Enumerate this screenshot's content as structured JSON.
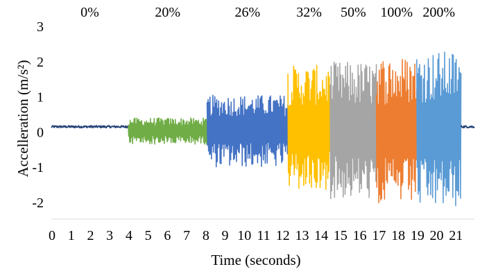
{
  "chart_data": {
    "type": "line",
    "xlabel": "Time (seconds)",
    "ylabel": "Accelleration (m/s²)",
    "xlim": [
      0,
      22
    ],
    "ylim": [
      -2.5,
      3
    ],
    "x_ticks": [
      0,
      1,
      2,
      3,
      4,
      5,
      6,
      7,
      8,
      9,
      10,
      11,
      12,
      13,
      14,
      15,
      16,
      17,
      18,
      19,
      20,
      21
    ],
    "y_ticks": [
      -2,
      -1,
      0,
      1,
      2,
      3
    ],
    "grid": false,
    "legend": "none",
    "segments": [
      {
        "label": "0%",
        "x_start": 0.0,
        "x_end": 4.0,
        "baseline": 0.15,
        "min": 0.1,
        "max": 0.2,
        "color": "#264478"
      },
      {
        "label": "20%",
        "x_start": 4.0,
        "x_end": 8.1,
        "baseline": 0.05,
        "min": -0.35,
        "max": 0.4,
        "color": "#70AD47"
      },
      {
        "label": "26%",
        "x_start": 8.1,
        "x_end": 12.3,
        "baseline": 0.1,
        "min": -1.0,
        "max": 1.05,
        "color": "#4472C4"
      },
      {
        "label": "32%",
        "x_start": 12.3,
        "x_end": 14.5,
        "baseline": 0.1,
        "min": -1.7,
        "max": 1.9,
        "color": "#FFC000"
      },
      {
        "label": "50%",
        "x_start": 14.5,
        "x_end": 16.9,
        "baseline": 0.0,
        "min": -1.9,
        "max": 2.0,
        "color": "#A5A5A5"
      },
      {
        "label": "100%",
        "x_start": 16.9,
        "x_end": 19.0,
        "baseline": 0.0,
        "min": -2.05,
        "max": 2.15,
        "color": "#ED7D31"
      },
      {
        "label": "200%",
        "x_start": 19.0,
        "x_end": 21.3,
        "baseline": 0.0,
        "min": -2.15,
        "max": 2.3,
        "color": "#5B9BD5"
      },
      {
        "label": "",
        "x_start": 21.3,
        "x_end": 22.0,
        "baseline": 0.15,
        "min": 0.1,
        "max": 0.2,
        "color": "#264478"
      }
    ]
  }
}
